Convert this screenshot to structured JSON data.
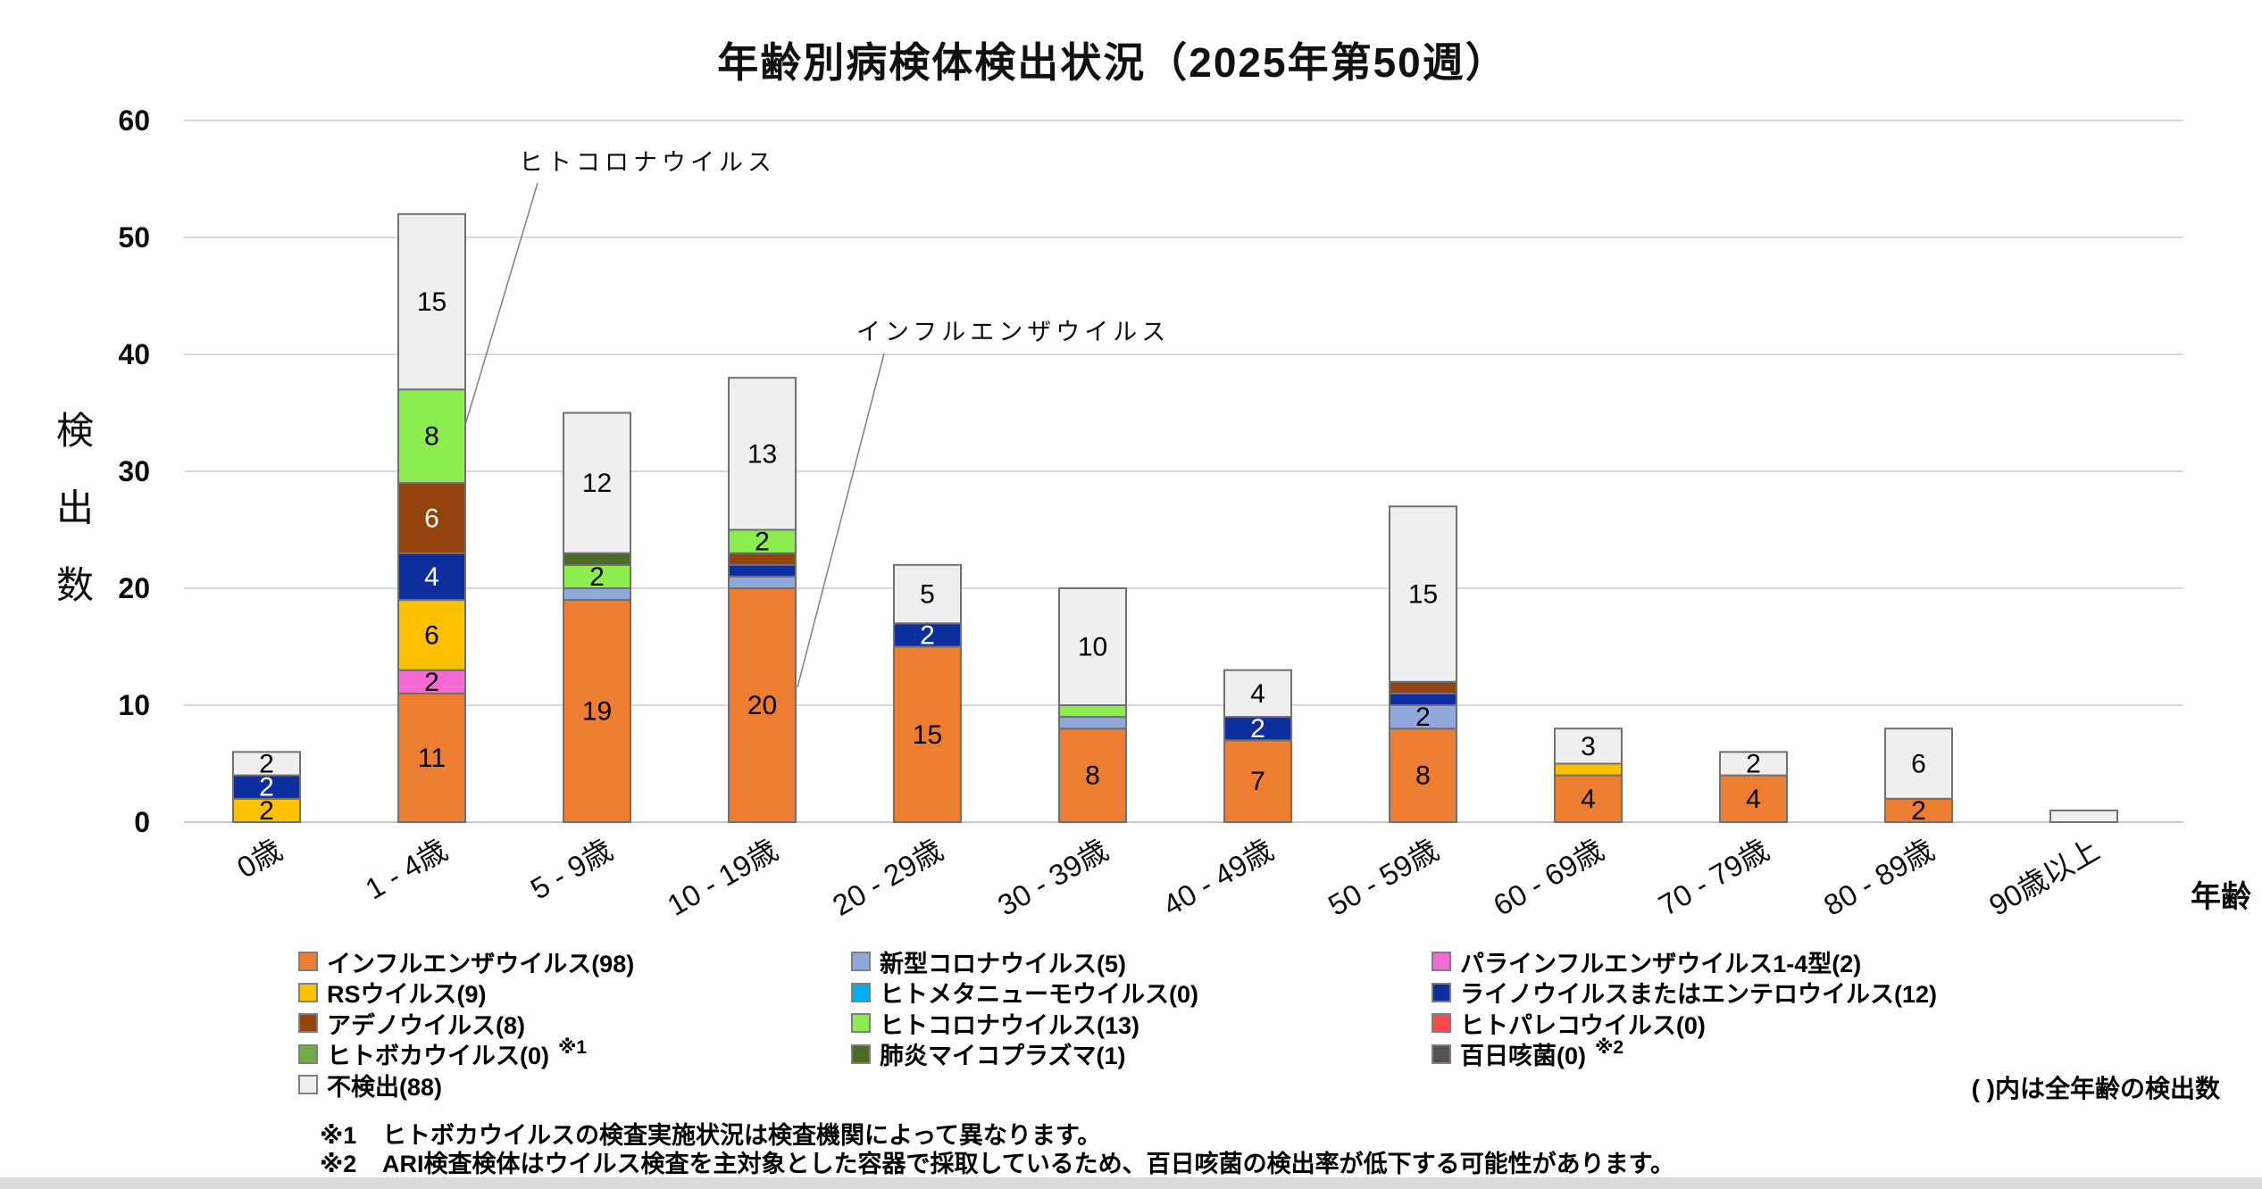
{
  "title": "年齢別病検体検出状況（2025年第50週）",
  "y_axis": {
    "title_chars": [
      "検",
      "出",
      "数"
    ],
    "ticks": [
      "0",
      "10",
      "20",
      "30",
      "40",
      "50",
      "60"
    ]
  },
  "x_axis": {
    "title": "年齢"
  },
  "chart_data": {
    "type": "bar",
    "stacked": true,
    "title": "年齢別病検体検出状況（2025年第50週）",
    "xlabel": "年齢",
    "ylabel": "検出数",
    "ylim": [
      0,
      60
    ],
    "y_tick_step": 10,
    "grid": true,
    "legend_position": "bottom",
    "data_label_rule": "labels shown for segment values >= 2",
    "categories": [
      "0歳",
      "1 - 4歳",
      "5 - 9歳",
      "10 - 19歳",
      "20 - 29歳",
      "30 - 39歳",
      "40 - 49歳",
      "50 - 59歳",
      "60 - 69歳",
      "70 - 79歳",
      "80 - 89歳",
      "90歳以上"
    ],
    "series": [
      {
        "name": "インフルエンザウイルス",
        "total": 98,
        "color": "#ED7D31",
        "label_color": "#000000",
        "values": [
          0,
          11,
          19,
          20,
          15,
          8,
          7,
          8,
          4,
          4,
          2,
          0
        ]
      },
      {
        "name": "新型コロナウイルス",
        "total": 5,
        "color": "#8FA9DC",
        "label_color": "#000000",
        "values": [
          0,
          0,
          1,
          1,
          0,
          1,
          0,
          2,
          0,
          0,
          0,
          0
        ]
      },
      {
        "name": "パラインフルエンザウイルス1-4型",
        "total": 2,
        "color": "#F469D2",
        "label_color": "#000000",
        "values": [
          0,
          2,
          0,
          0,
          0,
          0,
          0,
          0,
          0,
          0,
          0,
          0
        ]
      },
      {
        "name": "RSウイルス",
        "total": 9,
        "color": "#FFC000",
        "label_color": "#000000",
        "values": [
          2,
          6,
          0,
          0,
          0,
          0,
          0,
          0,
          1,
          0,
          0,
          0
        ]
      },
      {
        "name": "ヒトメタニューモウイルス",
        "total": 0,
        "color": "#00B0F0",
        "label_color": "#000000",
        "values": [
          0,
          0,
          0,
          0,
          0,
          0,
          0,
          0,
          0,
          0,
          0,
          0
        ]
      },
      {
        "name": "ライノウイルスまたはエンテロウイルス",
        "total": 12,
        "color": "#0D2F9E",
        "label_color": "#FFFFFF",
        "values": [
          2,
          4,
          0,
          1,
          2,
          0,
          2,
          1,
          0,
          0,
          0,
          0
        ]
      },
      {
        "name": "アデノウイルス",
        "total": 8,
        "color": "#94430D",
        "label_color": "#FFFFFF",
        "values": [
          0,
          6,
          0,
          1,
          0,
          0,
          0,
          1,
          0,
          0,
          0,
          0
        ]
      },
      {
        "name": "ヒトコロナウイルス",
        "total": 13,
        "color": "#8BEE4E",
        "label_color": "#000000",
        "values": [
          0,
          8,
          2,
          2,
          0,
          1,
          0,
          0,
          0,
          0,
          0,
          0
        ]
      },
      {
        "name": "ヒトパレコウイルス",
        "total": 0,
        "color": "#FB4A49",
        "label_color": "#000000",
        "values": [
          0,
          0,
          0,
          0,
          0,
          0,
          0,
          0,
          0,
          0,
          0,
          0
        ]
      },
      {
        "name": "ヒトボカウイルス",
        "total": 0,
        "color": "#6FAC47",
        "label_color": "#000000",
        "values": [
          0,
          0,
          0,
          0,
          0,
          0,
          0,
          0,
          0,
          0,
          0,
          0
        ]
      },
      {
        "name": "肺炎マイコプラズマ",
        "total": 1,
        "color": "#4A6B26",
        "label_color": "#FFFFFF",
        "values": [
          0,
          0,
          1,
          0,
          0,
          0,
          0,
          0,
          0,
          0,
          0,
          0
        ]
      },
      {
        "name": "百日咳菌",
        "total": 0,
        "color": "#565254",
        "label_color": "#FFFFFF",
        "values": [
          0,
          0,
          0,
          0,
          0,
          0,
          0,
          0,
          0,
          0,
          0,
          0
        ]
      },
      {
        "name": "不検出",
        "total": 88,
        "color": "#EFEFEF",
        "label_color": "#000000",
        "values": [
          2,
          15,
          12,
          13,
          5,
          10,
          4,
          15,
          3,
          2,
          6,
          1
        ]
      }
    ],
    "annotations": [
      {
        "text": "ヒトコロナウイルス",
        "points_to": {
          "category": "1 - 4歳",
          "series": "ヒトコロナウイルス"
        }
      },
      {
        "text": "インフルエンザウイルス",
        "points_to": {
          "category": "10 - 19歳",
          "series": "インフルエンザウイルス"
        }
      }
    ]
  },
  "legend": {
    "columns": [
      [
        {
          "label": "インフルエンザウイルス(98)",
          "color": "#ED7D31",
          "marker": ""
        },
        {
          "label": "RSウイルス(9)",
          "color": "#FFC000",
          "marker": ""
        },
        {
          "label": "アデノウイルス(8)",
          "color": "#94430D",
          "marker": ""
        },
        {
          "label": "ヒトボカウイルス(0)",
          "color": "#6FAC47",
          "marker": "※1"
        },
        {
          "label": "不検出(88)",
          "color": "#EFEFEF",
          "marker": ""
        }
      ],
      [
        {
          "label": "新型コロナウイルス(5)",
          "color": "#8FA9DC",
          "marker": ""
        },
        {
          "label": "ヒトメタニューモウイルス(0)",
          "color": "#00B0F0",
          "marker": ""
        },
        {
          "label": "ヒトコロナウイルス(13)",
          "color": "#8BEE4E",
          "marker": ""
        },
        {
          "label": "肺炎マイコプラズマ(1)",
          "color": "#4A6B26",
          "marker": ""
        }
      ],
      [
        {
          "label": "パラインフルエンザウイルス1-4型(2)",
          "color": "#F469D2",
          "marker": ""
        },
        {
          "label": "ライノウイルスまたはエンテロウイルス(12)",
          "color": "#0D2F9E",
          "marker": ""
        },
        {
          "label": "ヒトパレコウイルス(0)",
          "color": "#FB4A49",
          "marker": ""
        },
        {
          "label": "百日咳菌(0)",
          "color": "#565254",
          "marker": "※2"
        }
      ]
    ],
    "note": "( )内は全年齢の検出数"
  },
  "footnotes": [
    {
      "marker": "※1",
      "text": "ヒトボカウイルスの検査実施状況は検査機関によって異なります。"
    },
    {
      "marker": "※2",
      "text": "ARI検査検体はウイルス検査を主対象とした容器で採取しているため、百日咳菌の検出率が低下する可能性があります。"
    }
  ]
}
